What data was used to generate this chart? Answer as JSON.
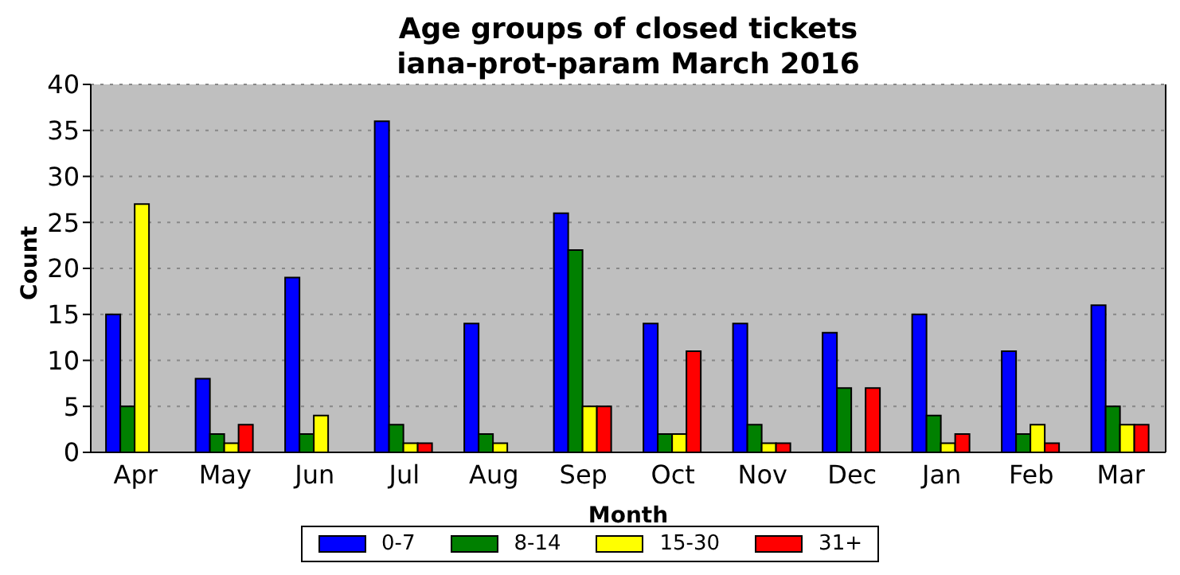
{
  "chart_data": {
    "type": "bar",
    "title": "Age groups of closed tickets",
    "subtitle": "iana-prot-param March 2016",
    "xlabel": "Month",
    "ylabel": "Count",
    "categories": [
      "Apr",
      "May",
      "Jun",
      "Jul",
      "Aug",
      "Sep",
      "Oct",
      "Nov",
      "Dec",
      "Jan",
      "Feb",
      "Mar"
    ],
    "series": [
      {
        "name": "0-7",
        "color": "#0000ff",
        "values": [
          15,
          8,
          19,
          36,
          14,
          26,
          14,
          14,
          13,
          15,
          11,
          16
        ]
      },
      {
        "name": "8-14",
        "color": "#008000",
        "values": [
          5,
          2,
          2,
          3,
          2,
          22,
          2,
          3,
          7,
          4,
          2,
          5
        ]
      },
      {
        "name": "15-30",
        "color": "#ffff00",
        "values": [
          27,
          1,
          4,
          1,
          1,
          5,
          2,
          1,
          0,
          1,
          3,
          3
        ]
      },
      {
        "name": "31+",
        "color": "#ff0000",
        "values": [
          0,
          3,
          0,
          1,
          0,
          5,
          11,
          1,
          7,
          2,
          1,
          3
        ]
      }
    ],
    "ylim": [
      0,
      40
    ],
    "yticks": [
      0,
      5,
      10,
      15,
      20,
      25,
      30,
      35,
      40
    ],
    "grid": "y",
    "legend": "bottom"
  }
}
